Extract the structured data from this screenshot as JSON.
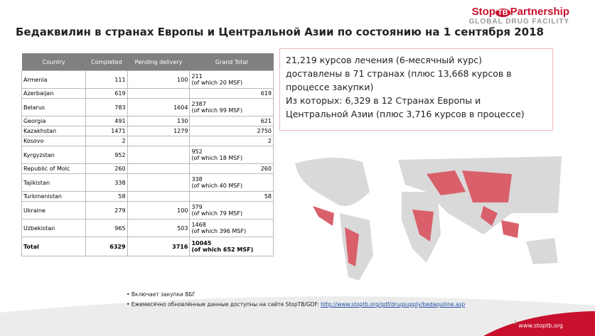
{
  "logo": {
    "stop": "Stop",
    "tb": "TB",
    "partnership": "Partnership",
    "subtitle": "GLOBAL DRUG FACILITY"
  },
  "title": "Бедаквилин в странах Европы и Центральной Азии по состоянию на 1 сентября 2018",
  "table": {
    "header": [
      "Country",
      "Completed",
      "Pending delivery",
      "Grand Total"
    ],
    "rows": [
      {
        "country": "Armenia",
        "completed": 111,
        "pending": 100,
        "total": 211,
        "note": "(of which 20 MSF)"
      },
      {
        "country": "Azerbaijan",
        "completed": 619,
        "pending": null,
        "total": 619
      },
      {
        "country": "Belarus",
        "completed": 783,
        "pending": 1604,
        "total": 2387,
        "note": "(of which 99 MSF)"
      },
      {
        "country": "Georgia",
        "completed": 491,
        "pending": 130,
        "total": 621
      },
      {
        "country": "Kazakhstan",
        "completed": 1471,
        "pending": 1279,
        "total": 2750
      },
      {
        "country": "Kosovo",
        "completed": 2,
        "pending": null,
        "total": 2
      },
      {
        "country": "Kyrgyzstan",
        "completed": 952,
        "pending": null,
        "total": 952,
        "note": "(of which 18 MSF)"
      },
      {
        "country": "Republic of Molc",
        "completed": 260,
        "pending": null,
        "total": 260
      },
      {
        "country": "Tajikistan",
        "completed": 338,
        "pending": null,
        "total": 338,
        "note": "(of which 40 MSF)"
      },
      {
        "country": "Turkmenistan",
        "completed": 58,
        "pending": null,
        "total": 58
      },
      {
        "country": "Ukraine",
        "completed": 279,
        "pending": 100,
        "total": 379,
        "note": "(of which 79 MSF)"
      },
      {
        "country": "Uzbekistan",
        "completed": 965,
        "pending": 503,
        "total": 1468,
        "note": "(of which 396 MSF)"
      }
    ],
    "total": {
      "country": "Total",
      "completed": 6329,
      "pending": 3716,
      "total": 10045,
      "note": "(of which 652 MSF)"
    }
  },
  "summary": [
    "21,219 курсов лечения (6-месячный курс)",
    "доставлены в 71 странах (плюс 13,668 курсов в",
    "процессе закупки)",
    "Из которых: 6,329 в 12 Странах Европы и",
    "Центральной Азии (плюс 3,716 курсов в процессе)"
  ],
  "bullets": [
    "Включает закупки ВБГ",
    "Ежемесячно обновлённые данные доступны на сайте StopTB/GDF:"
  ],
  "link": "http://www.stoptb.org/gdf/drugsupply/bedaquiline.asp",
  "footer": {
    "url": "www.stoptb.org",
    "page": "3"
  }
}
